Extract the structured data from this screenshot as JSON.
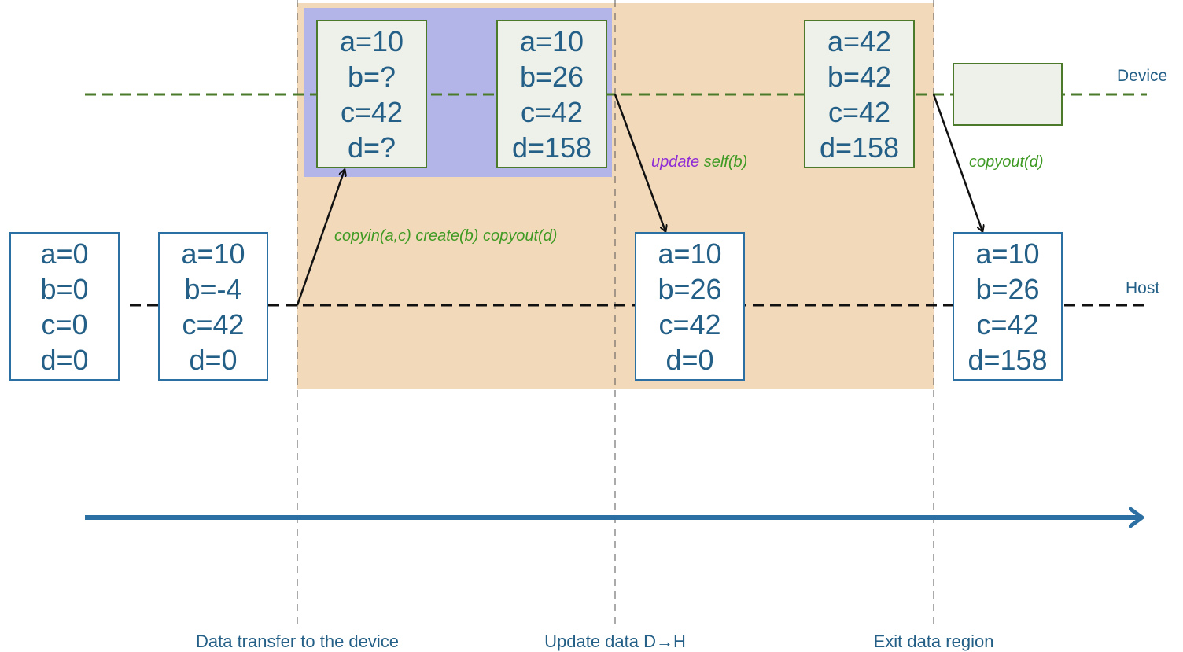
{
  "lanes": {
    "device": "Device",
    "host": "Host"
  },
  "colors": {
    "data_region": "#f2d9b9",
    "kernel_region": "#b3b5e8",
    "box_border": "#2b6fa3",
    "device_box_fill": "#eef0ea",
    "device_box_border": "#4a7a2a",
    "device_line": "#4a7a2a",
    "host_line": "#111111",
    "timeline_arrow": "#2b6fa3",
    "directive_green": "#3f9a24",
    "directive_purple": "#8e2bd6"
  },
  "host_boxes": [
    {
      "id": "h0",
      "lines": [
        "a=0",
        "b=0",
        "c=0",
        "d=0"
      ]
    },
    {
      "id": "h1",
      "lines": [
        "a=10",
        "b=-4",
        "c=42",
        "d=0"
      ]
    },
    {
      "id": "h2",
      "lines": [
        "a=10",
        "b=26",
        "c=42",
        "d=0"
      ]
    },
    {
      "id": "h3",
      "lines": [
        "a=10",
        "b=26",
        "c=42",
        "d=158"
      ]
    }
  ],
  "device_boxes": [
    {
      "id": "d0",
      "lines": [
        "a=10",
        "b=?",
        "c=42",
        "d=?"
      ]
    },
    {
      "id": "d1",
      "lines": [
        "a=10",
        "b=26",
        "c=42",
        "d=158"
      ]
    },
    {
      "id": "d2",
      "lines": [
        "a=42",
        "b=42",
        "c=42",
        "d=158"
      ]
    },
    {
      "id": "d3",
      "lines": []
    }
  ],
  "transfers": {
    "enter": "copyin(a,c) create(b) copyout(d)",
    "update_keyword": "update",
    "update_clause": "self(b)",
    "exit": "copyout(d)"
  },
  "phases": {
    "enter": "Data transfer to the device",
    "update": "Update data D→H",
    "exit": "Exit data region"
  }
}
